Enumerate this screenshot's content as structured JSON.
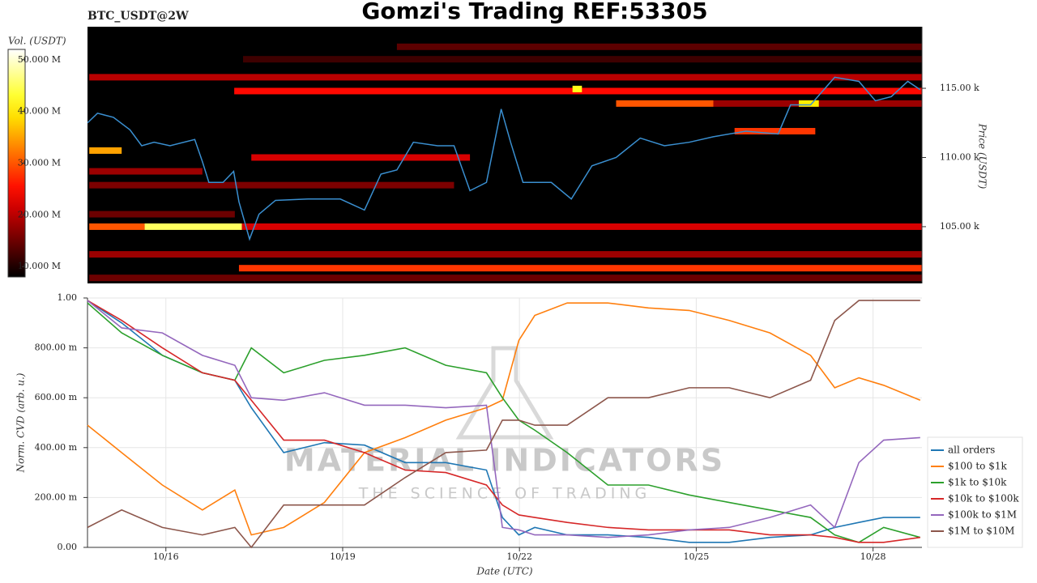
{
  "title": "Gomzi's Trading REF:53305",
  "chart_data": [
    {
      "type": "heatmap",
      "label": "BTC_USDT@2W",
      "ylabel": "Price (USDT)",
      "colorbar_label": "Vol. (USDT)",
      "colormap": "hot",
      "xlim": [
        14.67,
        28.83
      ],
      "ylim": [
        100900,
        119450
      ],
      "yticks": [
        {
          "value": 105000,
          "label": "105.00 k"
        },
        {
          "value": 110000,
          "label": "110.00 k"
        },
        {
          "value": 115000,
          "label": "115.00 k"
        }
      ],
      "clim": [
        8000000,
        52000000
      ],
      "cticks": [
        {
          "value": 10000000,
          "label": "10.000 M"
        },
        {
          "value": 20000000,
          "label": "20.000 M"
        },
        {
          "value": 30000000,
          "label": "30.000 M"
        },
        {
          "value": 40000000,
          "label": "40.000 M"
        },
        {
          "value": 50000000,
          "label": "50.000 M"
        }
      ],
      "bands": {
        "price": [
          114800,
          115800,
          114950,
          113900,
          113900,
          113900,
          110500,
          110000,
          108000,
          105000,
          105000,
          105000,
          103000,
          102000,
          101300,
          118000,
          117100,
          111900,
          105900,
          109000
        ],
        "x0": [
          17.16,
          14.7,
          22.9,
          23.64,
          25.29,
          26.74,
          14.7,
          17.45,
          14.7,
          14.7,
          15.64,
          17.29,
          14.7,
          17.24,
          14.7,
          19.92,
          17.31,
          25.65,
          14.7,
          14.7
        ],
        "x1": [
          28.83,
          28.83,
          23.06,
          25.29,
          28.83,
          27.08,
          15.25,
          21.16,
          20.89,
          15.64,
          17.29,
          28.83,
          28.83,
          28.83,
          28.83,
          28.83,
          28.83,
          27.02,
          17.17,
          16.62
        ],
        "volume": [
          25000000,
          20000000,
          42000000,
          30000000,
          18000000,
          40000000,
          35000000,
          22000000,
          16000000,
          30000000,
          45000000,
          22000000,
          18000000,
          28000000,
          15000000,
          14000000,
          12000000,
          28000000,
          15000000,
          18000000
        ]
      },
      "series": [
        {
          "name": "price",
          "color": "#3a8fd0",
          "x": [
            14.67,
            14.84,
            15.11,
            15.39,
            15.59,
            15.8,
            16.07,
            16.49,
            16.62,
            16.73,
            16.97,
            17.15,
            17.24,
            17.42,
            17.58,
            17.86,
            18.41,
            18.96,
            19.37,
            19.65,
            19.92,
            20.2,
            20.61,
            20.89,
            21.16,
            21.44,
            21.69,
            21.85,
            22.06,
            22.54,
            22.88,
            23.23,
            23.64,
            24.05,
            24.46,
            24.88,
            25.29,
            25.84,
            26.39,
            26.6,
            26.94,
            27.35,
            27.76,
            28.04,
            28.31,
            28.59,
            28.8
          ],
          "values": [
            112500,
            113200,
            112900,
            112000,
            110850,
            111100,
            110850,
            111300,
            109700,
            108200,
            108200,
            109000,
            106800,
            104100,
            105900,
            106900,
            107000,
            107000,
            106200,
            108800,
            109100,
            111100,
            110850,
            110850,
            107600,
            108200,
            113500,
            111100,
            108200,
            108200,
            107000,
            109400,
            110000,
            111400,
            110850,
            111100,
            111500,
            111900,
            111700,
            113800,
            113800,
            115800,
            115500,
            114100,
            114400,
            115500,
            114900
          ]
        }
      ]
    },
    {
      "type": "line",
      "xlabel": "Date (UTC)",
      "ylabel": "Norm. CVD (arb. u.)",
      "grid": true,
      "legend": "right",
      "watermark": "MATERIAL INDICATORS",
      "watermark_sub": "THE SCIENCE OF TRADING",
      "xlim": [
        14.67,
        28.83
      ],
      "ylim": [
        0,
        1
      ],
      "xticks": [
        {
          "value": 16,
          "label": "10/16"
        },
        {
          "value": 19,
          "label": "10/19"
        },
        {
          "value": 22,
          "label": "10/22"
        },
        {
          "value": 25,
          "label": "10/25"
        },
        {
          "value": 28,
          "label": "10/28"
        }
      ],
      "yticks": [
        {
          "value": 0,
          "label": "0.00"
        },
        {
          "value": 0.2,
          "label": "200.00 m"
        },
        {
          "value": 0.4,
          "label": "400.00 m"
        },
        {
          "value": 0.6,
          "label": "600.00 m"
        },
        {
          "value": 0.8,
          "label": "800.00 m"
        },
        {
          "value": 1,
          "label": "1.00"
        }
      ],
      "x": [
        14.67,
        15.25,
        15.94,
        16.62,
        17.17,
        17.45,
        18.0,
        18.69,
        19.37,
        20.06,
        20.75,
        21.44,
        21.71,
        21.99,
        22.26,
        22.81,
        23.5,
        24.19,
        24.88,
        25.56,
        26.25,
        26.94,
        27.35,
        27.76,
        28.18,
        28.8
      ],
      "series": [
        {
          "name": "all orders",
          "color": "#1f77b4",
          "values": [
            0.99,
            0.9,
            0.77,
            0.7,
            0.67,
            0.56,
            0.38,
            0.42,
            0.41,
            0.34,
            0.34,
            0.31,
            0.12,
            0.05,
            0.08,
            0.05,
            0.05,
            0.04,
            0.02,
            0.02,
            0.04,
            0.05,
            0.08,
            0.1,
            0.12,
            0.12
          ]
        },
        {
          "name": "$100 to $1k",
          "color": "#ff7f0e",
          "values": [
            0.49,
            0.38,
            0.25,
            0.15,
            0.23,
            0.05,
            0.08,
            0.18,
            0.38,
            0.44,
            0.51,
            0.56,
            0.59,
            0.83,
            0.93,
            0.98,
            0.98,
            0.96,
            0.95,
            0.91,
            0.86,
            0.77,
            0.64,
            0.68,
            0.65,
            0.59
          ]
        },
        {
          "name": "$1k to $10k",
          "color": "#2ca02c",
          "values": [
            0.98,
            0.86,
            0.77,
            0.7,
            0.67,
            0.8,
            0.7,
            0.75,
            0.77,
            0.8,
            0.73,
            0.7,
            0.6,
            0.51,
            0.47,
            0.38,
            0.25,
            0.25,
            0.21,
            0.18,
            0.15,
            0.12,
            0.05,
            0.02,
            0.08,
            0.04
          ]
        },
        {
          "name": "$10k to $100k",
          "color": "#d62728",
          "values": [
            0.99,
            0.91,
            0.8,
            0.7,
            0.67,
            0.59,
            0.43,
            0.43,
            0.38,
            0.31,
            0.3,
            0.25,
            0.17,
            0.13,
            0.12,
            0.1,
            0.08,
            0.07,
            0.07,
            0.07,
            0.05,
            0.05,
            0.04,
            0.02,
            0.02,
            0.04
          ]
        },
        {
          "name": "$100k to $1M",
          "color": "#9467bd",
          "values": [
            0.99,
            0.88,
            0.86,
            0.77,
            0.73,
            0.6,
            0.59,
            0.62,
            0.57,
            0.57,
            0.56,
            0.57,
            0.08,
            0.07,
            0.05,
            0.05,
            0.04,
            0.05,
            0.07,
            0.08,
            0.12,
            0.17,
            0.08,
            0.34,
            0.43,
            0.44
          ]
        },
        {
          "name": "$1M to $10M",
          "color": "#8c564b",
          "values": [
            0.08,
            0.15,
            0.08,
            0.05,
            0.08,
            0.0,
            0.17,
            0.17,
            0.17,
            0.28,
            0.38,
            0.39,
            0.51,
            0.51,
            0.49,
            0.49,
            0.6,
            0.6,
            0.64,
            0.64,
            0.6,
            0.67,
            0.91,
            0.99,
            0.99,
            0.99
          ]
        }
      ]
    }
  ]
}
